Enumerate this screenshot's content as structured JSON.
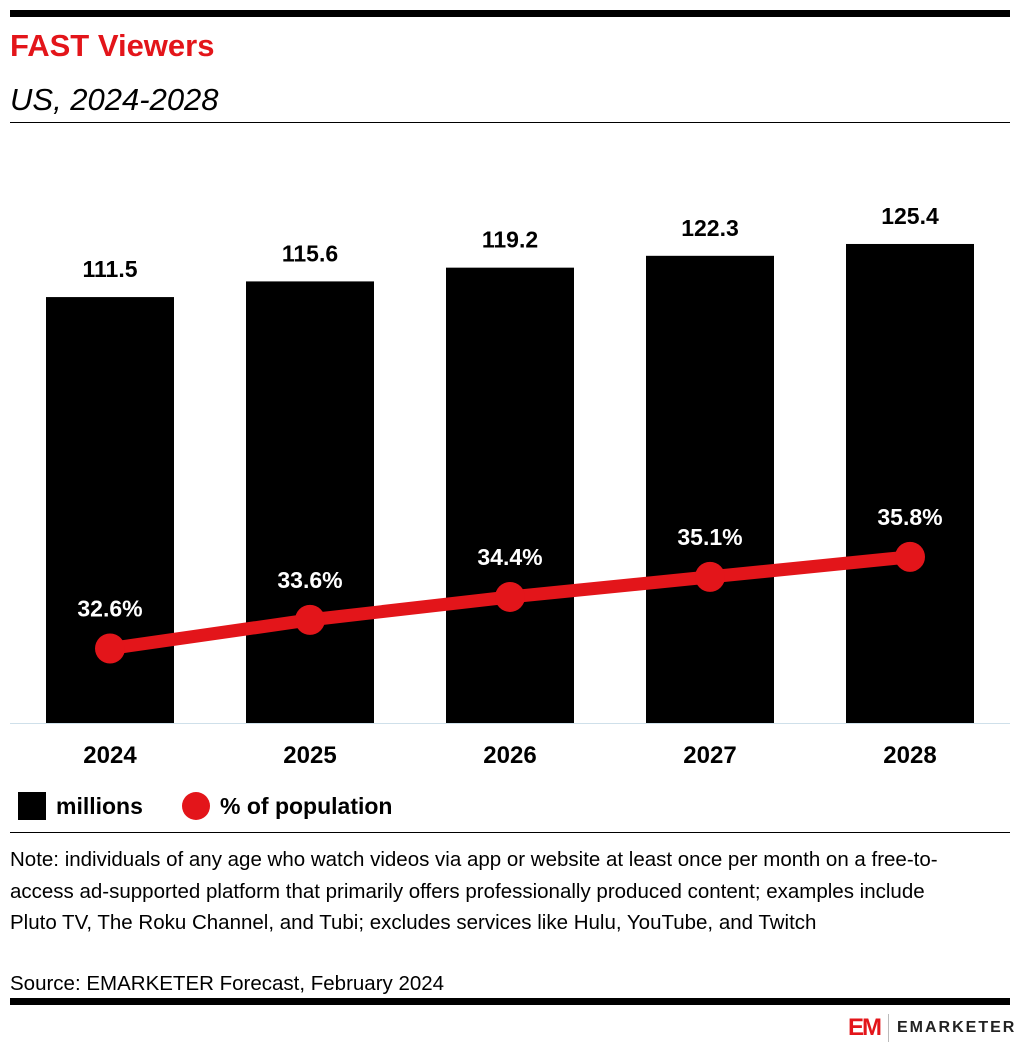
{
  "header": {
    "title": "FAST Viewers",
    "subtitle": "US, 2024-2028"
  },
  "chart_data": {
    "type": "bar+line",
    "categories": [
      "2024",
      "2025",
      "2026",
      "2027",
      "2028"
    ],
    "series": [
      {
        "name": "millions",
        "type": "bar",
        "values": [
          111.5,
          115.6,
          119.2,
          122.3,
          125.4
        ],
        "labels": [
          "111.5",
          "115.6",
          "119.2",
          "122.3",
          "125.4"
        ],
        "color": "#000000"
      },
      {
        "name": "% of population",
        "type": "line",
        "values": [
          32.6,
          33.6,
          34.4,
          35.1,
          35.8
        ],
        "labels": [
          "32.6%",
          "33.6%",
          "34.4%",
          "35.1%",
          "35.8%"
        ],
        "color": "#e3151a"
      }
    ],
    "ylim": [
      0,
      150
    ],
    "y2lim": [
      30,
      50
    ],
    "grid": false,
    "legend": "bottom-left"
  },
  "footer": {
    "note": "Note: individuals of any age who watch videos via app or website at least once per month on a free-to-access ad-supported platform that primarily offers professionally produced content; examples include Pluto TV, The Roku Channel, and Tubi; excludes services like Hulu, YouTube, and Twitch",
    "source": "Source: EMARKETER Forecast, February 2024",
    "logo_mark": "EM",
    "logo_name": "EMARKETER"
  }
}
